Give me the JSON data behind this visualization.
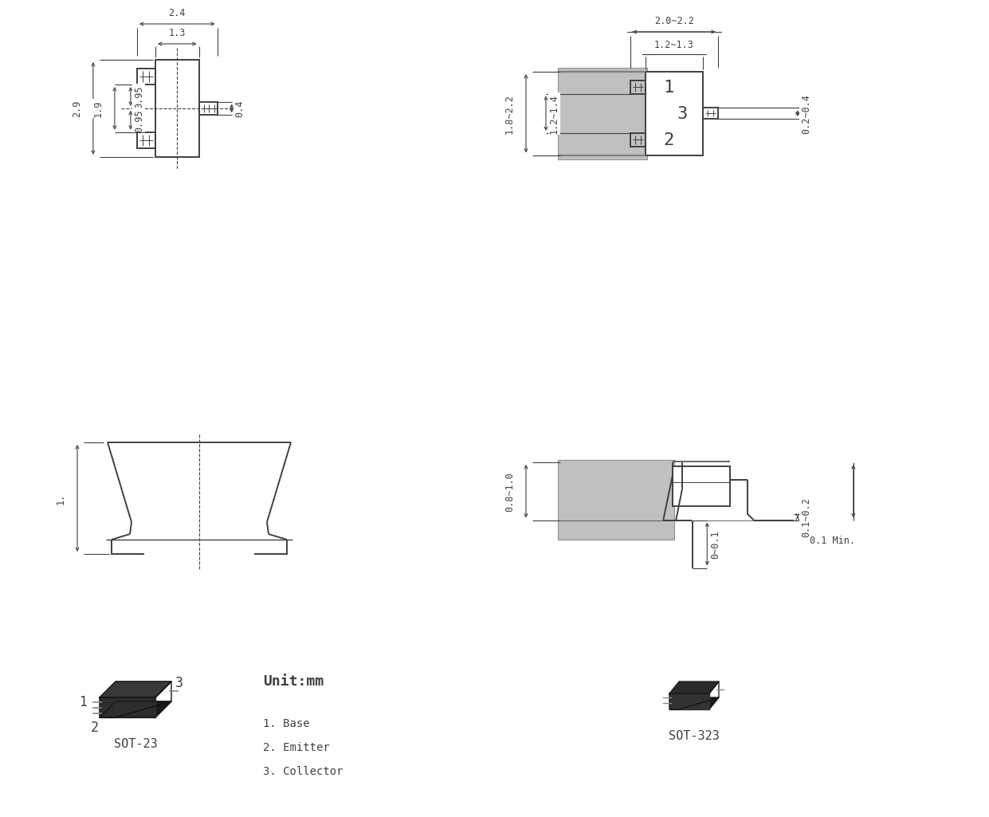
{
  "bg": "#ffffff",
  "lc": "#404040",
  "fs": 8.5,
  "lw": 1.4,
  "dlw": 0.8,
  "tlw": 0.7,
  "dims": {
    "s23_tw": "2.4",
    "s23_bw": "1.3",
    "s23_th": "2.9",
    "s23_ph": "1.9",
    "s23_pa": "0.95",
    "s23_pb": "0.95",
    "s23_rph": "0.4",
    "s23_sh": "1.",
    "s323_tw": "2.0~2.2",
    "s323_bw": "1.2~1.3",
    "s323_th": "1.8~2.2",
    "s323_ph": "1.2~1.4",
    "s323_rph": "0.2~0.4",
    "s323_sh2": "0.1~0.2",
    "s323_bh": "0.8~1.0",
    "s323_lh": "0~0.1",
    "s323_min": "0.1 Min."
  },
  "txt": {
    "unit": "Unit:mm",
    "base": "1. Base",
    "emit": "2. Emitter",
    "coll": "3. Collector",
    "sot23": "SOT-23",
    "sot323": "SOT-323",
    "p1": "1",
    "p2": "2",
    "p3": "3"
  }
}
